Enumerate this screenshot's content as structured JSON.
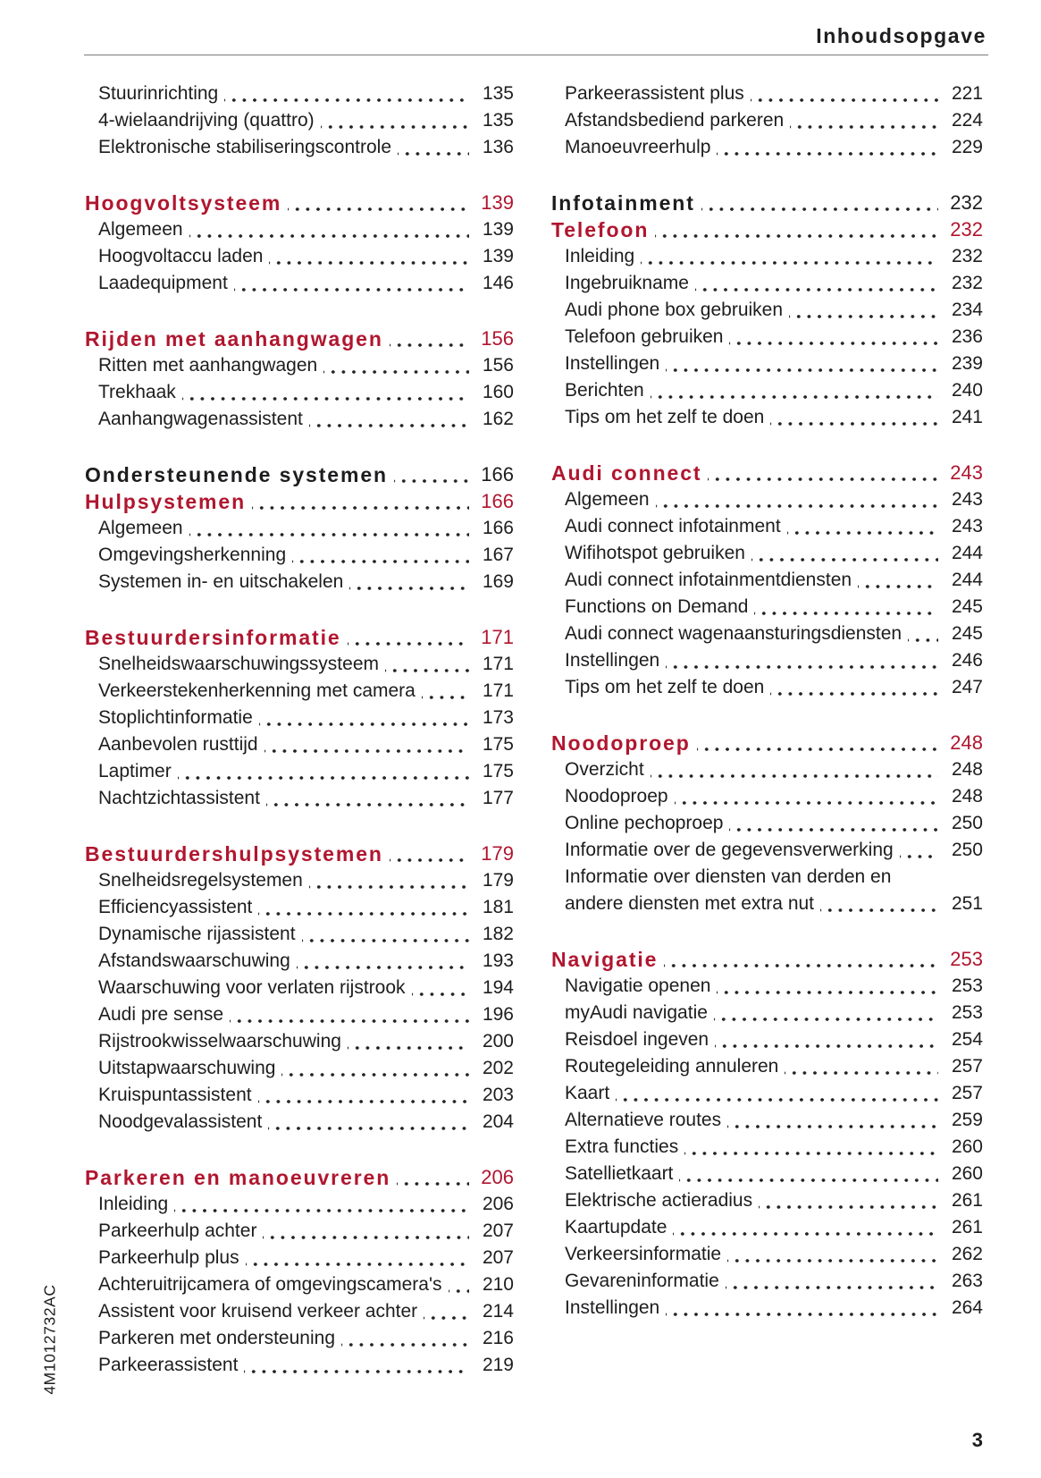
{
  "page": {
    "header_title": "Inhoudsopgave",
    "footer_page_number": "3",
    "spine_code": "4M1012732AC",
    "accent_color": "#b0162f"
  },
  "toc": {
    "left_column": [
      {
        "rows": [
          {
            "style": "sub",
            "label": "Stuurinrichting",
            "page": "135"
          },
          {
            "style": "sub",
            "label": "4-wielaandrijving (quattro)",
            "page": "135"
          },
          {
            "style": "sub",
            "label": "Elektronische stabiliseringscontrole",
            "page": "136"
          }
        ]
      },
      {
        "rows": [
          {
            "style": "chapter",
            "label": "Hoogvoltsysteem",
            "page": "139"
          },
          {
            "style": "sub",
            "label": "Algemeen",
            "page": "139"
          },
          {
            "style": "sub",
            "label": "Hoogvoltaccu laden",
            "page": "139"
          },
          {
            "style": "sub",
            "label": "Laadequipment",
            "page": "146"
          }
        ]
      },
      {
        "rows": [
          {
            "style": "chapter",
            "label": "Rijden met aanhangwagen",
            "page": "156"
          },
          {
            "style": "sub",
            "label": "Ritten met aanhangwagen",
            "page": "156"
          },
          {
            "style": "sub",
            "label": "Trekhaak",
            "page": "160"
          },
          {
            "style": "sub",
            "label": "Aanhangwagenassistent",
            "page": "162"
          }
        ]
      },
      {
        "rows": [
          {
            "style": "part",
            "label": "Ondersteunende systemen",
            "page": "166"
          },
          {
            "style": "chapter",
            "label": "Hulpsystemen",
            "page": "166"
          },
          {
            "style": "sub",
            "label": "Algemeen",
            "page": "166"
          },
          {
            "style": "sub",
            "label": "Omgevingsherkenning",
            "page": "167"
          },
          {
            "style": "sub",
            "label": "Systemen in- en uitschakelen",
            "page": "169"
          }
        ]
      },
      {
        "rows": [
          {
            "style": "chapter",
            "label": "Bestuurdersinformatie",
            "page": "171"
          },
          {
            "style": "sub",
            "label": "Snelheidswaarschuwingssysteem",
            "page": "171"
          },
          {
            "style": "sub",
            "label": "Verkeerstekenherkenning met camera",
            "page": "171"
          },
          {
            "style": "sub",
            "label": "Stoplichtinformatie",
            "page": "173"
          },
          {
            "style": "sub",
            "label": "Aanbevolen rusttijd",
            "page": "175"
          },
          {
            "style": "sub",
            "label": "Laptimer",
            "page": "175"
          },
          {
            "style": "sub",
            "label": "Nachtzichtassistent",
            "page": "177"
          }
        ]
      },
      {
        "rows": [
          {
            "style": "chapter",
            "label": "Bestuurdershulpsystemen",
            "page": "179"
          },
          {
            "style": "sub",
            "label": "Snelheidsregelsystemen",
            "page": "179"
          },
          {
            "style": "sub",
            "label": "Efficiencyassistent",
            "page": "181"
          },
          {
            "style": "sub",
            "label": "Dynamische rijassistent",
            "page": "182"
          },
          {
            "style": "sub",
            "label": "Afstandswaarschuwing",
            "page": "193"
          },
          {
            "style": "sub",
            "label": "Waarschuwing voor verlaten rijstrook",
            "page": "194"
          },
          {
            "style": "sub",
            "label": "Audi pre sense",
            "page": "196"
          },
          {
            "style": "sub",
            "label": "Rijstrookwisselwaarschuwing",
            "page": "200"
          },
          {
            "style": "sub",
            "label": "Uitstapwaarschuwing",
            "page": "202"
          },
          {
            "style": "sub",
            "label": "Kruispuntassistent",
            "page": "203"
          },
          {
            "style": "sub",
            "label": "Noodgevalassistent",
            "page": "204"
          }
        ]
      },
      {
        "rows": [
          {
            "style": "chapter",
            "label": "Parkeren en manoeuvreren",
            "page": "206"
          },
          {
            "style": "sub",
            "label": "Inleiding",
            "page": "206"
          },
          {
            "style": "sub",
            "label": "Parkeerhulp achter",
            "page": "207"
          },
          {
            "style": "sub",
            "label": "Parkeerhulp plus",
            "page": "207"
          },
          {
            "style": "sub",
            "label": "Achteruitrijcamera of omgevingscamera's",
            "page": "210"
          },
          {
            "style": "sub",
            "label": "Assistent voor kruisend verkeer achter",
            "page": "214"
          },
          {
            "style": "sub",
            "label": "Parkeren met ondersteuning",
            "page": "216"
          },
          {
            "style": "sub",
            "label": "Parkeerassistent",
            "page": "219"
          }
        ]
      }
    ],
    "right_column": [
      {
        "rows": [
          {
            "style": "sub",
            "label": "Parkeerassistent plus",
            "page": "221"
          },
          {
            "style": "sub",
            "label": "Afstandsbediend parkeren",
            "page": "224"
          },
          {
            "style": "sub",
            "label": "Manoeuvreerhulp",
            "page": "229"
          }
        ]
      },
      {
        "rows": [
          {
            "style": "part",
            "label": "Infotainment",
            "page": "232"
          },
          {
            "style": "chapter",
            "label": "Telefoon",
            "page": "232"
          },
          {
            "style": "sub",
            "label": "Inleiding",
            "page": "232"
          },
          {
            "style": "sub",
            "label": "Ingebruikname",
            "page": "232"
          },
          {
            "style": "sub",
            "label": "Audi phone box gebruiken",
            "page": "234"
          },
          {
            "style": "sub",
            "label": "Telefoon gebruiken",
            "page": "236"
          },
          {
            "style": "sub",
            "label": "Instellingen",
            "page": "239"
          },
          {
            "style": "sub",
            "label": "Berichten",
            "page": "240"
          },
          {
            "style": "sub",
            "label": "Tips om het zelf te doen",
            "page": "241"
          }
        ]
      },
      {
        "rows": [
          {
            "style": "chapter",
            "label": "Audi connect",
            "page": "243"
          },
          {
            "style": "sub",
            "label": "Algemeen",
            "page": "243"
          },
          {
            "style": "sub",
            "label": "Audi connect infotainment",
            "page": "243"
          },
          {
            "style": "sub",
            "label": "Wifihotspot gebruiken",
            "page": "244"
          },
          {
            "style": "sub",
            "label": "Audi connect infotainmentdiensten",
            "page": "244"
          },
          {
            "style": "sub",
            "label": "Functions on Demand",
            "page": "245"
          },
          {
            "style": "sub",
            "label": "Audi connect wagenaansturingsdiensten",
            "page": "245"
          },
          {
            "style": "sub",
            "label": "Instellingen",
            "page": "246"
          },
          {
            "style": "sub",
            "label": "Tips om het zelf te doen",
            "page": "247"
          }
        ]
      },
      {
        "rows": [
          {
            "style": "chapter",
            "label": "Noodoproep",
            "page": "248"
          },
          {
            "style": "sub",
            "label": "Overzicht",
            "page": "248"
          },
          {
            "style": "sub",
            "label": "Noodoproep",
            "page": "248"
          },
          {
            "style": "sub",
            "label": "Online pechoproep",
            "page": "250"
          },
          {
            "style": "sub",
            "label": "Informatie over de gegevensverwerking",
            "page": "250"
          },
          {
            "style": "sub",
            "label": "Informatie over diensten van derden en",
            "page": null
          },
          {
            "style": "sub",
            "label": "andere diensten met extra nut",
            "page": "251"
          }
        ]
      },
      {
        "rows": [
          {
            "style": "chapter",
            "label": "Navigatie",
            "page": "253"
          },
          {
            "style": "sub",
            "label": "Navigatie openen",
            "page": "253"
          },
          {
            "style": "sub",
            "label": "myAudi navigatie",
            "page": "253"
          },
          {
            "style": "sub",
            "label": "Reisdoel ingeven",
            "page": "254"
          },
          {
            "style": "sub",
            "label": "Routegeleiding annuleren",
            "page": "257"
          },
          {
            "style": "sub",
            "label": "Kaart",
            "page": "257"
          },
          {
            "style": "sub",
            "label": "Alternatieve routes",
            "page": "259"
          },
          {
            "style": "sub",
            "label": "Extra functies",
            "page": "260"
          },
          {
            "style": "sub",
            "label": "Satellietkaart",
            "page": "260"
          },
          {
            "style": "sub",
            "label": "Elektrische actieradius",
            "page": "261"
          },
          {
            "style": "sub",
            "label": "Kaartupdate",
            "page": "261"
          },
          {
            "style": "sub",
            "label": "Verkeersinformatie",
            "page": "262"
          },
          {
            "style": "sub",
            "label": "Gevareninformatie",
            "page": "263"
          },
          {
            "style": "sub",
            "label": "Instellingen",
            "page": "264"
          }
        ]
      }
    ]
  }
}
